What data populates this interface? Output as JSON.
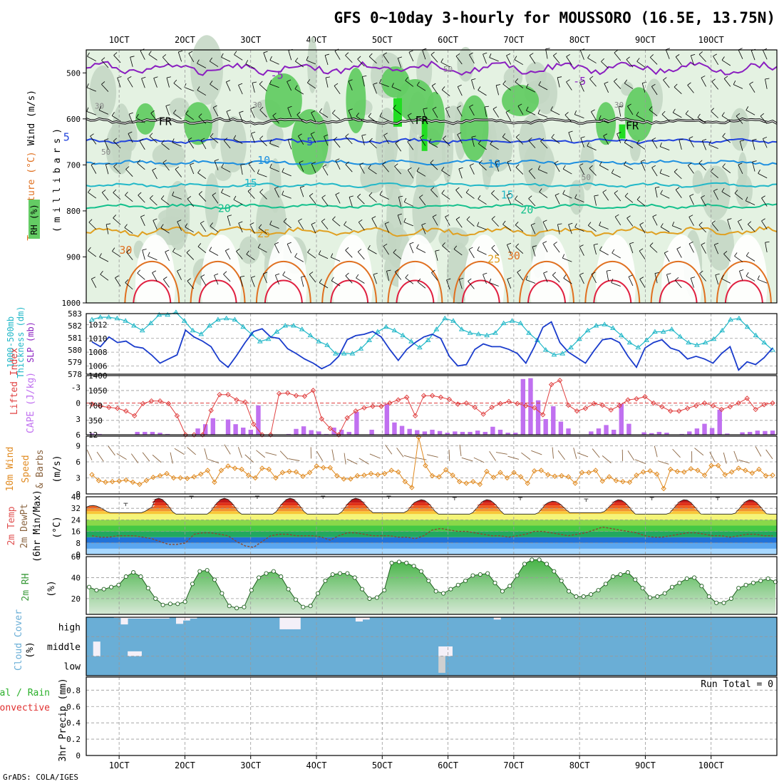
{
  "title": "GFS 0~10day 3-hourly for MOUSSORO (16.5E, 13.75N)",
  "credit": "GrADS: COLA/IGES",
  "date_labels": [
    "1OCT",
    "2OCT",
    "3OCT",
    "4OCT",
    "5OCT",
    "6OCT",
    "7OCT",
    "8OCT",
    "9OCT",
    "10OCT"
  ],
  "colors": {
    "frame": "#000000",
    "grid": "#999999",
    "rh_light": "#e4f2e2",
    "rh_mid": "#c3d6c3",
    "rh_green": "#64cc64",
    "rh_bright": "#22dd22",
    "temp_violet": "#8a1ec0",
    "temp_blue": "#2244dd",
    "temp_sky": "#1e90e0",
    "temp_cyan": "#22b8c8",
    "temp_teal": "#14c08c",
    "temp_orange1": "#e0a020",
    "temp_orange2": "#e07020",
    "temp_red": "#e02040",
    "thickness": "#22b8c8",
    "slp": "#1a3ccc",
    "li": "#e04040",
    "cape": "#c070f0",
    "wind10": "#e08a20",
    "barb10": "#8a6440",
    "rh2": "#3a9a3a",
    "cloud": "#6aaed6",
    "cloud_gap": "#f4f0f8",
    "cloud_gap_low": "#d0d0d0",
    "precip_label": "#2ab02a",
    "precip_label2": "#e03030"
  },
  "panel_labels": {
    "p1_wind": "Wind (m/s)",
    "p1_temp": "Temperature (°C)",
    "p1_rh": "RH (%)",
    "p1_units": "(millibars)",
    "p2_thick": "1000-500mb",
    "p2_thick2": "Thickness (dm)",
    "p2_slp": "SLP (mb)",
    "p3_li": "Lifted Index",
    "p3_cape": "CAPE (J/kg)",
    "p4_a": "10m Wind",
    "p4_b": "Speed",
    "p4_c": "& Barbs",
    "p4_unit": "(m/s)",
    "p5_a": "2m Temp",
    "p5_b": "2m DewPt",
    "p5_c": "(6hr Min/Max)",
    "p5_unit": "(°C)",
    "p6_a": "2m RH",
    "p6_unit": "(%)",
    "p7_a": "Cloud Cover",
    "p7_unit": "(%)",
    "p8_a": "Total / Rain",
    "p8_b": "Convective",
    "p8_c": "3hr Precip (mm)",
    "run_total": "Run Total = 0"
  },
  "chart_data": [
    {
      "type": "contour-profile",
      "title": "Temperature, RH and Wind profile",
      "ylabel": "millibars",
      "y_ticks": [
        500,
        600,
        700,
        800,
        900,
        1000
      ],
      "ylim": [
        1000,
        450
      ],
      "rh_shading_label": "RH (%)",
      "contour_labels": [
        {
          "text": "-5",
          "day": 3.4,
          "p": 505
        },
        {
          "text": "-5",
          "day": 8.0,
          "p": 518
        },
        {
          "text": "FR",
          "day": 1.7,
          "p": 606
        },
        {
          "text": "FR",
          "day": 5.6,
          "p": 603
        },
        {
          "text": "FR",
          "day": 8.8,
          "p": 615
        },
        {
          "text": "5",
          "day": 0.2,
          "p": 640
        },
        {
          "text": "5",
          "day": 3.9,
          "p": 650
        },
        {
          "text": "10",
          "day": 3.2,
          "p": 690
        },
        {
          "text": "10",
          "day": 6.7,
          "p": 698
        },
        {
          "text": "15",
          "day": 3.0,
          "p": 740
        },
        {
          "text": "15",
          "day": 6.9,
          "p": 765
        },
        {
          "text": "20",
          "day": 2.6,
          "p": 795
        },
        {
          "text": "20",
          "day": 7.2,
          "p": 798
        },
        {
          "text": "25",
          "day": 3.2,
          "p": 850
        },
        {
          "text": "25",
          "day": 6.7,
          "p": 905
        },
        {
          "text": "30",
          "day": 1.1,
          "p": 885
        },
        {
          "text": "30",
          "day": 7.0,
          "p": 898
        },
        {
          "text": "50",
          "day": 6.0,
          "p": 490
        },
        {
          "text": "30",
          "day": 0.7,
          "p": 570
        },
        {
          "text": "30",
          "day": 3.1,
          "p": 568
        },
        {
          "text": "30",
          "day": 8.6,
          "p": 568
        },
        {
          "text": "50",
          "day": 0.8,
          "p": 670
        },
        {
          "text": "50",
          "day": 8.1,
          "p": 725
        }
      ],
      "levels": [
        {
          "label": "-5",
          "color_key": "temp_violet",
          "base": 490,
          "amp": 14
        },
        {
          "label": "FR",
          "color_key": "frame",
          "base": 605,
          "amp": 6
        },
        {
          "label": "5",
          "color_key": "temp_blue",
          "base": 648,
          "amp": 5
        },
        {
          "label": "10",
          "color_key": "temp_sky",
          "base": 695,
          "amp": 5
        },
        {
          "label": "15",
          "color_key": "temp_cyan",
          "base": 744,
          "amp": 5
        },
        {
          "label": "20",
          "color_key": "temp_teal",
          "base": 790,
          "amp": 5
        },
        {
          "label": "25",
          "color_key": "temp_orange1",
          "base": 845,
          "amp": 10
        }
      ]
    },
    {
      "type": "line",
      "title": "1000-500mb Thickness and SLP",
      "y_left_label": "Thickness (dm)",
      "y_left_ticks": [
        578,
        579,
        580,
        581,
        582,
        583
      ],
      "y_left_lim": [
        578,
        583
      ],
      "y_right_label": "SLP (mb)",
      "y_right_ticks": [
        1006,
        1008,
        1010,
        1012
      ],
      "y_right_lim": [
        1004.8,
        1013.6
      ],
      "series": [
        {
          "name": "1000-500mb Thickness",
          "axis": "left",
          "marker": "triangle",
          "values": [
            582.5,
            582.7,
            582.7,
            582.6,
            582.4,
            582.0,
            581.6,
            582.2,
            582.9,
            582.9,
            583.1,
            582.4,
            581.6,
            581.3,
            582.0,
            582.5,
            582.6,
            582.5,
            581.9,
            581.3,
            580.7,
            580.9,
            581.5,
            582.0,
            582.0,
            581.7,
            581.2,
            580.7,
            580.4,
            579.7,
            579.7,
            579.7,
            580.1,
            580.8,
            581.5,
            581.9,
            581.6,
            581.2,
            580.7,
            580.2,
            580.8,
            581.7,
            582.6,
            582.4,
            581.7,
            581.4,
            581.3,
            581.2,
            581.4,
            582.2,
            582.4,
            582.2,
            581.4,
            580.8,
            580.0,
            579.6,
            579.7,
            580.2,
            580.9,
            581.6,
            582.0,
            582.1,
            581.8,
            581.2,
            580.6,
            580.2,
            580.8,
            581.5,
            581.5,
            581.7,
            581.1,
            580.6,
            580.4,
            580.6,
            580.9,
            581.6,
            582.5,
            582.6,
            581.9,
            581.2,
            580.6,
            580.0
          ]
        },
        {
          "name": "SLP",
          "axis": "right",
          "marker": "none",
          "values": [
            1009.5,
            1008.8,
            1010.2,
            1009.4,
            1009.6,
            1008.8,
            1008.6,
            1007.6,
            1006.4,
            1007.0,
            1007.6,
            1011.2,
            1010.2,
            1009.6,
            1008.8,
            1006.8,
            1005.8,
            1007.5,
            1009.4,
            1011.0,
            1011.4,
            1010.2,
            1010.0,
            1008.5,
            1007.8,
            1007.0,
            1006.4,
            1005.6,
            1006.2,
            1007.4,
            1009.8,
            1010.4,
            1010.6,
            1011.0,
            1010.2,
            1008.4,
            1006.8,
            1008.4,
            1009.4,
            1010.2,
            1010.6,
            1010.0,
            1007.4,
            1006.0,
            1006.2,
            1008.4,
            1009.2,
            1008.8,
            1008.8,
            1008.4,
            1007.8,
            1006.4,
            1008.8,
            1011.6,
            1012.4,
            1009.4,
            1008.0,
            1007.2,
            1006.4,
            1008.2,
            1009.8,
            1010.0,
            1009.4,
            1007.4,
            1005.8,
            1008.6,
            1009.4,
            1009.8,
            1008.6,
            1008.2,
            1007.0,
            1007.4,
            1007.0,
            1006.4,
            1007.8,
            1008.8,
            1005.4,
            1006.6,
            1006.2,
            1007.2,
            1008.6
          ]
        }
      ]
    },
    {
      "type": "bar+line",
      "title": "Lifted Index and CAPE",
      "y_left_label": "Lifted Index",
      "y_left_ticks": [
        -3,
        0,
        3,
        6
      ],
      "y_left_lim": [
        6,
        -5.2
      ],
      "y_right_label": "CAPE (J/kg)",
      "y_right_ticks": [
        12,
        350,
        700,
        1050,
        1400
      ],
      "y_right_lim": [
        12,
        1400
      ],
      "li_values": [
        0.2,
        0.6,
        0.8,
        1.0,
        1.5,
        2.4,
        0.1,
        -0.4,
        -0.4,
        0.1,
        2.4,
        6.0,
        6.0,
        6.0,
        1.4,
        -1.6,
        -1.6,
        -0.6,
        -0.2,
        4.0,
        6.0,
        6.0,
        -1.8,
        -1.9,
        -1.4,
        -1.3,
        -2.4,
        3.0,
        4.8,
        6.0,
        2.8,
        1.5,
        0.9,
        0.6,
        0.6,
        0.0,
        -0.6,
        -1.1,
        2.4,
        -1.4,
        -1.4,
        -1.1,
        -0.7,
        0.2,
        0.0,
        0.8,
        2.1,
        0.8,
        0.1,
        -0.3,
        0.1,
        0.5,
        0.9,
        2.2,
        -3.5,
        -4.3,
        0.4,
        1.5,
        1.0,
        0.1,
        0.4,
        1.3,
        0.5,
        -0.6,
        -0.8,
        -1.2,
        0.0,
        0.7,
        1.5,
        1.5,
        1.0,
        0.5,
        0.0,
        0.5,
        1.2,
        0.7,
        0.0,
        -0.9,
        1.2,
        0.3,
        0.0
      ],
      "cape_values": [
        40,
        30,
        20,
        20,
        20,
        20,
        80,
        80,
        80,
        60,
        30,
        0,
        0,
        0,
        160,
        260,
        400,
        0,
        370,
        260,
        180,
        130,
        700,
        0,
        0,
        0,
        30,
        150,
        210,
        120,
        90,
        30,
        180,
        130,
        80,
        550,
        0,
        130,
        0,
        740,
        300,
        220,
        150,
        120,
        90,
        130,
        100,
        60,
        90,
        80,
        80,
        110,
        80,
        200,
        130,
        60,
        60,
        1320,
        1340,
        820,
        380,
        680,
        320,
        160,
        0,
        0,
        90,
        160,
        240,
        130,
        740,
        270,
        0,
        70,
        50,
        80,
        60,
        20,
        30,
        90,
        160,
        270,
        170,
        600,
        40,
        0,
        70,
        80,
        110,
        100,
        110
      ]
    },
    {
      "type": "line",
      "title": "10m Wind Speed & Barbs",
      "ylabel": "(m/s)",
      "y_ticks": [
        0,
        3,
        6,
        9
      ],
      "ylim": [
        0,
        10.8
      ],
      "values": [
        3.6,
        2.5,
        2.2,
        2.3,
        2.4,
        2.6,
        2.2,
        1.8,
        2.5,
        3.1,
        3.4,
        3.8,
        3.0,
        3.0,
        2.9,
        3.2,
        3.7,
        4.4,
        2.2,
        4.4,
        5.2,
        4.8,
        4.6,
        3.5,
        3.0,
        4.8,
        4.6,
        3.0,
        4.0,
        4.2,
        4.1,
        3.3,
        4.0,
        5.2,
        4.9,
        4.9,
        3.4,
        2.8,
        2.8,
        3.4,
        3.5,
        3.8,
        3.6,
        3.8,
        4.4,
        4.1,
        2.3,
        1.2,
        11.0,
        5.3,
        3.4,
        3.2,
        4.5,
        3.5,
        2.3,
        2.0,
        2.3,
        1.8,
        4.2,
        3.1,
        4.0,
        3.0,
        4.0,
        3.2,
        2.0,
        4.3,
        4.4,
        3.6,
        3.3,
        3.4,
        3.2,
        2.0,
        4.0,
        4.0,
        4.4,
        2.4,
        3.2,
        2.5,
        2.3,
        2.2,
        3.5,
        4.1,
        4.3,
        3.7,
        1.0,
        4.6,
        4.2,
        4.1,
        4.7,
        4.4,
        3.5,
        5.3,
        5.3,
        3.6,
        4.1,
        4.8,
        4.4,
        3.9,
        4.6,
        3.4,
        3.5
      ]
    },
    {
      "type": "area+line",
      "title": "2m Temp / 2m DewPt (6hr Min/Max)",
      "ylabel": "(°C)",
      "y_ticks": [
        0,
        8,
        16,
        24,
        32,
        40
      ],
      "ylim": [
        0,
        40
      ],
      "temp_max_by_day": [
        34,
        39,
        39,
        39,
        39,
        38,
        38,
        37,
        38,
        38
      ],
      "temp_min_by_day": [
        29,
        28,
        28,
        28,
        29,
        28,
        28,
        29,
        28,
        28
      ],
      "dewpoint": [
        13,
        12,
        12,
        13,
        13,
        13,
        12,
        11,
        9,
        7,
        7,
        8,
        14,
        15,
        15,
        14,
        13,
        9,
        6,
        5,
        9,
        13,
        14,
        14,
        13,
        13,
        13,
        12,
        10,
        13,
        15,
        15,
        14,
        13,
        13,
        13,
        12,
        12,
        11,
        13,
        17,
        18,
        17,
        16,
        16,
        15,
        14,
        13,
        13,
        12,
        13,
        14,
        16,
        16,
        15,
        14,
        13,
        14,
        15,
        17,
        19,
        18,
        17,
        16,
        15,
        13,
        12,
        12,
        13,
        14,
        15,
        15,
        14,
        13,
        13,
        12,
        13,
        14,
        14,
        13,
        13
      ]
    },
    {
      "type": "area",
      "title": "2m RH",
      "ylabel": "(%)",
      "y_ticks": [
        20,
        40,
        60
      ],
      "ylim": [
        5,
        60
      ],
      "values": [
        31,
        28,
        29,
        31,
        33,
        41,
        45,
        41,
        30,
        20,
        14,
        15,
        15,
        17,
        34,
        46,
        47,
        38,
        25,
        13,
        11,
        12,
        28,
        40,
        44,
        46,
        41,
        29,
        19,
        12,
        13,
        25,
        37,
        43,
        44,
        44,
        40,
        29,
        20,
        21,
        28,
        54,
        55,
        54,
        51,
        46,
        37,
        27,
        25,
        29,
        33,
        37,
        42,
        43,
        44,
        35,
        27,
        32,
        42,
        53,
        57,
        57,
        53,
        46,
        37,
        27,
        22,
        22,
        24,
        28,
        34,
        41,
        43,
        45,
        38,
        30,
        21,
        22,
        25,
        31,
        35,
        39,
        40,
        32,
        22,
        16,
        16,
        20,
        30,
        33,
        35,
        37,
        39,
        36
      ]
    },
    {
      "type": "bar",
      "title": "Cloud Cover",
      "ylabel": "(%)",
      "levels": [
        "high",
        "middle",
        "low"
      ],
      "high": [
        62,
        62,
        62,
        62,
        58,
        25,
        55,
        55,
        55,
        55,
        55,
        55,
        62,
        28,
        45,
        55,
        62,
        62,
        62,
        62,
        62,
        62,
        62,
        62,
        62,
        62,
        62,
        62,
        0,
        0,
        0,
        62,
        75,
        75,
        75,
        75,
        75,
        75,
        62,
        40,
        50,
        60,
        70,
        80,
        85,
        85,
        85,
        85,
        85,
        85,
        60,
        85,
        62,
        62,
        62,
        62,
        62,
        62,
        62,
        50,
        80,
        85,
        85,
        85,
        85,
        85,
        85,
        85,
        85,
        85,
        85,
        85,
        85,
        62,
        62,
        62,
        62,
        62,
        62,
        62,
        62,
        62,
        62,
        62,
        62,
        62,
        62,
        62,
        62,
        62,
        62,
        62,
        62,
        62,
        62,
        62,
        62,
        62,
        62,
        62
      ],
      "middle": [
        0,
        75,
        0,
        0,
        0,
        0,
        25,
        25,
        0,
        0,
        0,
        0,
        0,
        0,
        0,
        0,
        0,
        0,
        0,
        0,
        0,
        0,
        0,
        0,
        0,
        0,
        0,
        0,
        0,
        0,
        0,
        0,
        0,
        0,
        0,
        0,
        0,
        0,
        0,
        0,
        0,
        0,
        0,
        0,
        0,
        0,
        0,
        0,
        0,
        0,
        0,
        50,
        50,
        0,
        0,
        0,
        0,
        0,
        0,
        0,
        0,
        0,
        0,
        0,
        0,
        0,
        0,
        0,
        0,
        0,
        0,
        0,
        0,
        0,
        0,
        0,
        0,
        0,
        0,
        0,
        0,
        0,
        0,
        0,
        0,
        0,
        0,
        0,
        0,
        0,
        0,
        0,
        0,
        0,
        0,
        0,
        0,
        0,
        0,
        0
      ]
    },
    {
      "type": "bar",
      "title": "3hr Precip",
      "ylabel": "3hr Precip (mm)",
      "y_ticks": [
        0,
        0.2,
        0.4,
        0.6,
        0.8
      ],
      "ylim": [
        0,
        0.96
      ],
      "values": [],
      "run_total": 0
    }
  ]
}
